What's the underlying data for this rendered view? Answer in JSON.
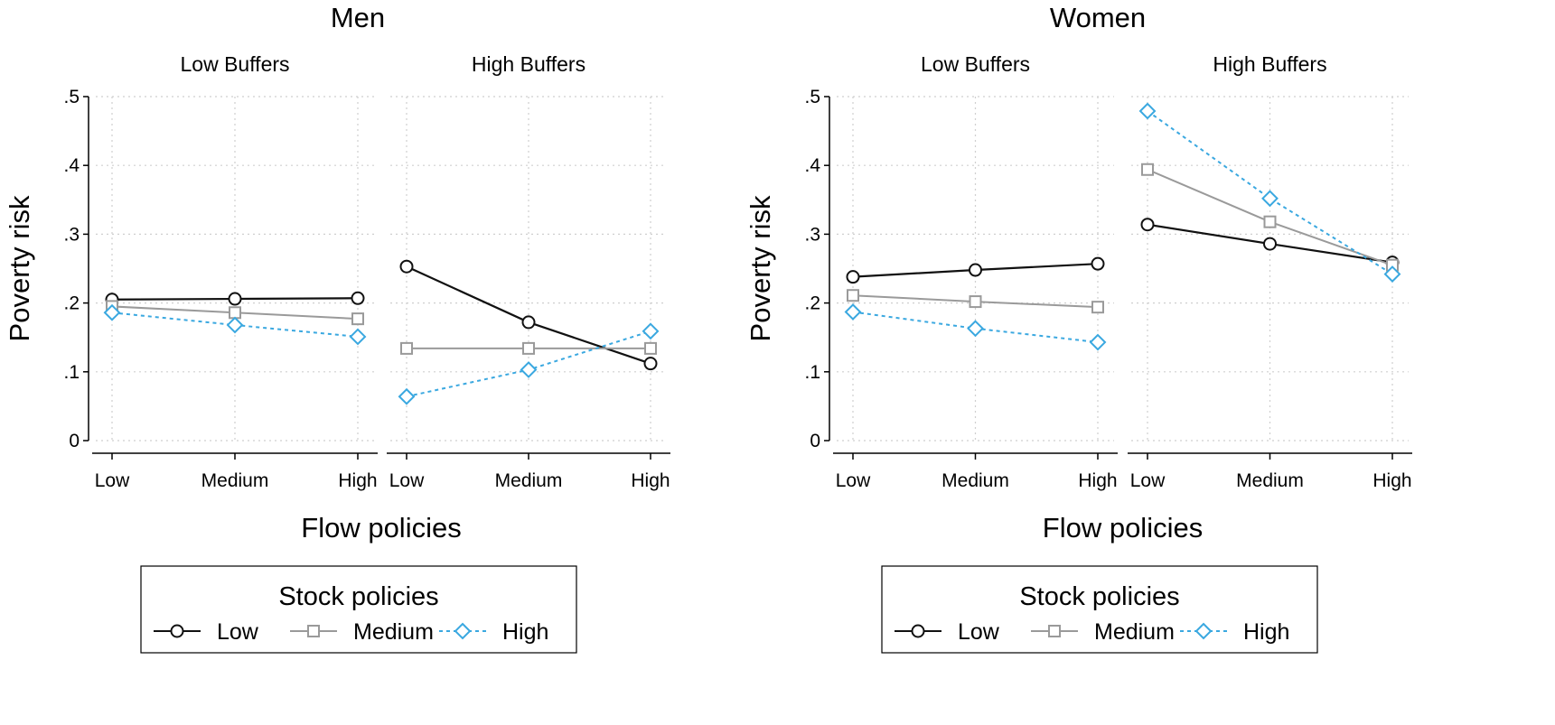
{
  "colors": {
    "low": "#111111",
    "medium": "#9a9a9a",
    "high": "#3aa8e0"
  },
  "chart_data": [
    {
      "type": "line",
      "title": "Men",
      "ylabel": "Poverty risk",
      "xlabel": "Flow policies",
      "ylim": [
        0,
        0.5
      ],
      "yticks": [
        "0",
        ".1",
        ".2",
        ".3",
        ".4",
        ".5"
      ],
      "x": [
        "Low",
        "Medium",
        "High"
      ],
      "legend": {
        "title": "Stock policies",
        "position": "bottom"
      },
      "panels": [
        {
          "title": "Low Buffers",
          "series": [
            {
              "name": "Low",
              "values": [
                0.205,
                0.206,
                0.207
              ]
            },
            {
              "name": "Medium",
              "values": [
                0.195,
                0.186,
                0.177
              ]
            },
            {
              "name": "High",
              "values": [
                0.186,
                0.168,
                0.151
              ]
            }
          ]
        },
        {
          "title": "High Buffers",
          "series": [
            {
              "name": "Low",
              "values": [
                0.253,
                0.172,
                0.112
              ]
            },
            {
              "name": "Medium",
              "values": [
                0.134,
                0.134,
                0.134
              ]
            },
            {
              "name": "High",
              "values": [
                0.064,
                0.103,
                0.159
              ]
            }
          ]
        }
      ]
    },
    {
      "type": "line",
      "title": "Women",
      "ylabel": "Poverty risk",
      "xlabel": "Flow policies",
      "ylim": [
        0,
        0.5
      ],
      "yticks": [
        "0",
        ".1",
        ".2",
        ".3",
        ".4",
        ".5"
      ],
      "x": [
        "Low",
        "Medium",
        "High"
      ],
      "legend": {
        "title": "Stock policies",
        "position": "bottom"
      },
      "panels": [
        {
          "title": "Low Buffers",
          "series": [
            {
              "name": "Low",
              "values": [
                0.238,
                0.248,
                0.257
              ]
            },
            {
              "name": "Medium",
              "values": [
                0.211,
                0.202,
                0.194
              ]
            },
            {
              "name": "High",
              "values": [
                0.187,
                0.163,
                0.143
              ]
            }
          ]
        },
        {
          "title": "High Buffers",
          "series": [
            {
              "name": "Low",
              "values": [
                0.314,
                0.286,
                0.259
              ]
            },
            {
              "name": "Medium",
              "values": [
                0.394,
                0.318,
                0.255
              ]
            },
            {
              "name": "High",
              "values": [
                0.479,
                0.352,
                0.242
              ]
            }
          ]
        }
      ]
    }
  ]
}
